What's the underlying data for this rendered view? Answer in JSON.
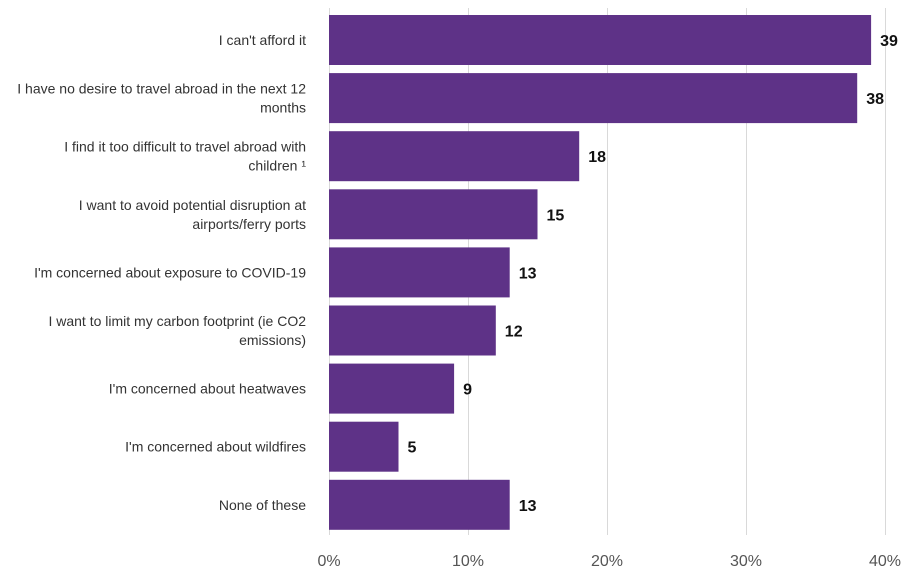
{
  "chart_data": {
    "type": "bar",
    "orientation": "horizontal",
    "categories": [
      [
        "I can't afford it"
      ],
      [
        "I have no desire to travel abroad in the next 12",
        "months"
      ],
      [
        "I find it too difficult to travel abroad with",
        "children ¹"
      ],
      [
        "I want to avoid potential disruption at",
        "airports/ferry ports"
      ],
      [
        "I'm concerned about exposure to COVID-19"
      ],
      [
        "I want to limit my carbon footprint (ie CO2",
        "emissions)"
      ],
      [
        "I'm concerned about heatwaves"
      ],
      [
        "I'm concerned about wildfires"
      ],
      [
        "None of these"
      ]
    ],
    "values": [
      39,
      38,
      18,
      15,
      13,
      12,
      9,
      5,
      13
    ],
    "value_labels": [
      "39",
      "38",
      "18",
      "15",
      "13",
      "12",
      "9",
      "5",
      "13"
    ],
    "xlim": [
      0,
      40
    ],
    "x_ticks": [
      0,
      10,
      20,
      30,
      40
    ],
    "x_tick_labels": [
      "0%",
      "10%",
      "20%",
      "30%",
      "40%"
    ],
    "grid": "vertical",
    "bar_color": "#5e3287",
    "title": "",
    "xlabel": "",
    "ylabel": ""
  }
}
